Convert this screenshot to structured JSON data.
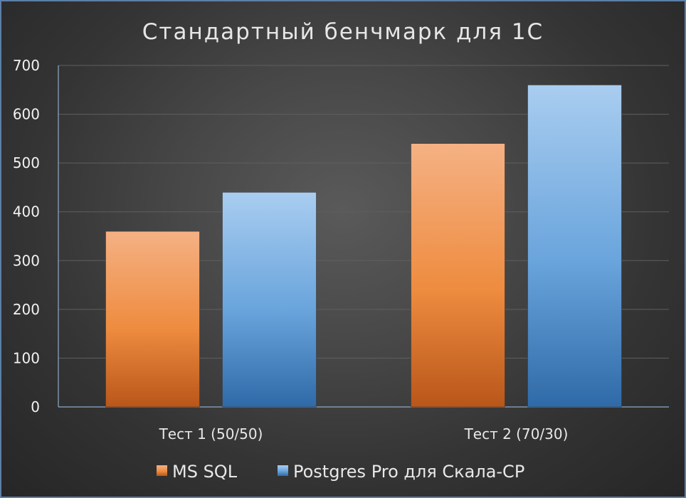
{
  "chart_data": {
    "type": "bar",
    "title": "Стандартный бенчмарк для 1С",
    "categories": [
      "Тест 1 (50/50)",
      "Тест 2 (70/30)"
    ],
    "series": [
      {
        "name": "MS SQL",
        "values": [
          360,
          540
        ],
        "color": "#ed7d31"
      },
      {
        "name": "Postgres Pro для Скала-СР",
        "values": [
          440,
          660
        ],
        "color": "#5b9bd5"
      }
    ],
    "yticks": [
      "0",
      "100",
      "200",
      "300",
      "400",
      "500",
      "600",
      "700"
    ],
    "ylim": [
      0,
      700
    ],
    "grid": true,
    "legend_position": "bottom"
  }
}
